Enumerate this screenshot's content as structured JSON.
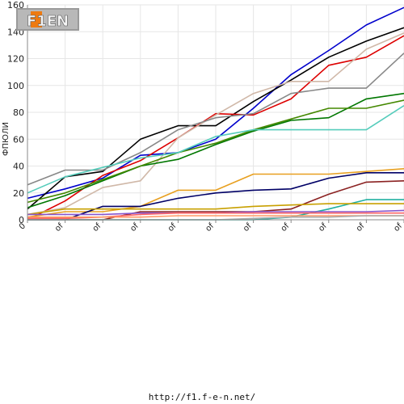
{
  "logo_text": "F1EN",
  "footer_url": "http://f1.f-e-n.net/",
  "chart_data": {
    "type": "line",
    "title": "",
    "xlabel": "",
    "ylabel": "ФПЮЛИ",
    "ylim": [
      0,
      160
    ],
    "yticks": [
      0,
      20,
      40,
      60,
      80,
      100,
      120,
      140,
      160
    ],
    "grid": true,
    "categories": [
      "0",
      "of",
      "of",
      "of",
      "of",
      "of",
      "of",
      "of",
      "of",
      "of",
      "of"
    ],
    "series": [
      {
        "color": "#0000cc",
        "values": [
          16,
          23,
          31,
          48,
          50,
          60,
          83,
          108,
          126,
          145,
          158
        ]
      },
      {
        "color": "#000000",
        "values": [
          8,
          32,
          36,
          60,
          70,
          70,
          88,
          104,
          121,
          133,
          143
        ]
      },
      {
        "color": "#dd0000",
        "values": [
          0,
          14,
          33,
          44,
          61,
          79,
          78,
          90,
          115,
          121,
          137
        ]
      },
      {
        "color": "#d0b8a8",
        "values": [
          4,
          9,
          24,
          29,
          61,
          78,
          94,
          103,
          103,
          127,
          139
        ]
      },
      {
        "color": "#888888",
        "values": [
          26,
          37,
          37,
          50,
          67,
          76,
          79,
          94,
          98,
          98,
          124
        ]
      },
      {
        "color": "#007700",
        "values": [
          9,
          18,
          29,
          40,
          45,
          56,
          66,
          74,
          76,
          90,
          94
        ]
      },
      {
        "color": "#448800",
        "values": [
          13,
          20,
          30,
          40,
          50,
          57,
          67,
          75,
          83,
          83,
          89
        ]
      },
      {
        "color": "#55ccbb",
        "values": [
          20,
          32,
          39,
          46,
          50,
          62,
          67,
          67,
          67,
          67,
          85
        ]
      },
      {
        "color": "#e8a020",
        "values": [
          2,
          6,
          6,
          10,
          22,
          22,
          34,
          34,
          34,
          36,
          38
        ]
      },
      {
        "color": "#000066",
        "values": [
          0,
          0,
          10,
          10,
          16,
          20,
          22,
          23,
          31,
          35,
          35
        ]
      },
      {
        "color": "#8b2222",
        "values": [
          0,
          0,
          0,
          6,
          6,
          6,
          6,
          8,
          19,
          28,
          29
        ]
      },
      {
        "color": "#20b0a0",
        "values": [
          0,
          0,
          0,
          0,
          0,
          0,
          0,
          2,
          8,
          15,
          15
        ]
      },
      {
        "color": "#c8a000",
        "values": [
          4,
          8,
          8,
          8,
          8,
          8,
          10,
          11,
          12,
          12,
          12
        ]
      },
      {
        "color": "#8855cc",
        "values": [
          4,
          4,
          4,
          5,
          5,
          5,
          6,
          6,
          6,
          6,
          7
        ]
      },
      {
        "color": "#ff6666",
        "values": [
          1,
          1,
          2,
          4,
          5,
          5,
          5,
          5,
          5,
          5,
          5
        ]
      },
      {
        "color": "#ff9966",
        "values": [
          2,
          2,
          2,
          2,
          3,
          3,
          3,
          3,
          3,
          3,
          3
        ]
      },
      {
        "color": "#aaaaaa",
        "values": [
          0,
          0,
          0,
          0,
          0,
          0,
          1,
          2,
          2,
          3,
          3
        ]
      }
    ]
  }
}
